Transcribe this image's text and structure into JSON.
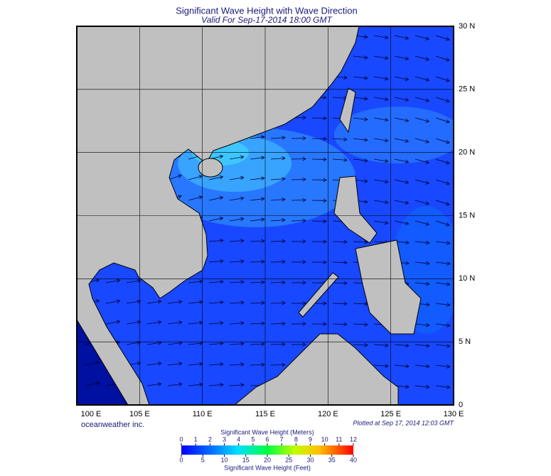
{
  "title": "Significant Wave Height with Wave Direction",
  "subtitle": "Valid For Sep-17-2014 18:00 GMT",
  "map": {
    "lon_ticks": [
      {
        "value": 100,
        "label": "100 E"
      },
      {
        "value": 105,
        "label": "105 E"
      },
      {
        "value": 110,
        "label": "110 E"
      },
      {
        "value": 115,
        "label": "115 E"
      },
      {
        "value": 120,
        "label": "120 E"
      },
      {
        "value": 125,
        "label": "125 E"
      },
      {
        "value": 130,
        "label": "130 E"
      }
    ],
    "lat_ticks": [
      {
        "value": 30,
        "label": "30 N"
      },
      {
        "value": 25,
        "label": "25 N"
      },
      {
        "value": 20,
        "label": "20 N"
      },
      {
        "value": 15,
        "label": "15 N"
      },
      {
        "value": 10,
        "label": "10 N"
      },
      {
        "value": 5,
        "label": "5 N"
      },
      0
    ]
  },
  "credit": "oceanweather inc.",
  "plotted": "Plotted at Sep 17, 2014 12:03 GMT",
  "colorbar": {
    "meters_label": "Significant Wave Height (Meters)",
    "meters_ticks": [
      0,
      1,
      2,
      3,
      4,
      5,
      6,
      7,
      8,
      9,
      10,
      11,
      12
    ],
    "feet_label": "Significant Wave Height (Feet)",
    "feet_ticks": [
      0,
      5,
      10,
      15,
      20,
      25,
      30,
      35,
      40
    ]
  }
}
